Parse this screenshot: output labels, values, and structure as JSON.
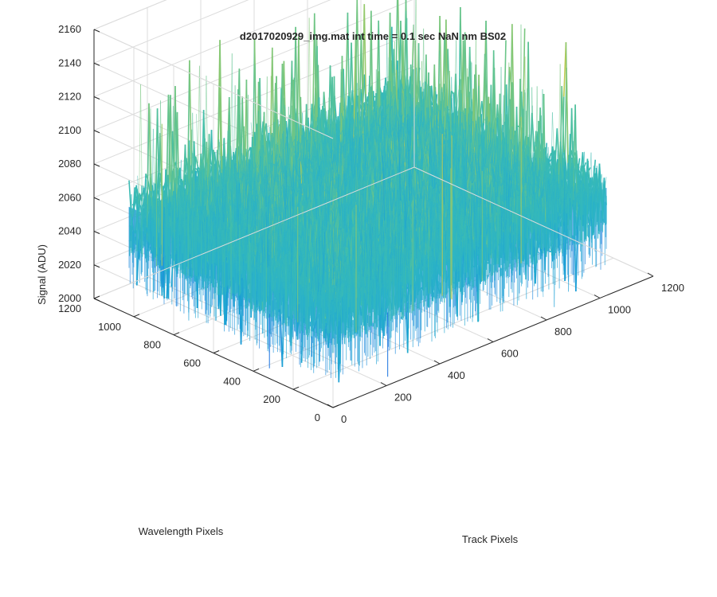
{
  "chart_data": {
    "type": "surface",
    "title": "d2017020929_img.mat int time = 0.1 sec  NaN nm BS02",
    "xlabel": "Track Pixels",
    "ylabel": "Wavelength Pixels",
    "zlabel": "Signal (ADU)",
    "xlim": [
      0,
      1200
    ],
    "ylim": [
      0,
      1200
    ],
    "zlim": [
      2000,
      2160
    ],
    "x_ticks": [
      "0",
      "200",
      "400",
      "600",
      "800",
      "1000",
      "1200"
    ],
    "y_ticks": [
      "0",
      "200",
      "400",
      "600",
      "800",
      "1000",
      "1200"
    ],
    "z_ticks": [
      "2000",
      "2020",
      "2040",
      "2060",
      "2080",
      "2100",
      "2120",
      "2140",
      "2160"
    ],
    "data_extent": {
      "x": [
        0,
        1024
      ],
      "y": [
        0,
        1024
      ]
    },
    "value_summary": {
      "baseline_mean": 2060,
      "peak_max": 2150,
      "min": 2005
    },
    "colormap": [
      "#1f77e0",
      "#1a9ed6",
      "#2bb3c8",
      "#43bfa9",
      "#7cc77c",
      "#b6cb55",
      "#e3c33b"
    ],
    "grid": true,
    "view": "3d-perspective"
  }
}
